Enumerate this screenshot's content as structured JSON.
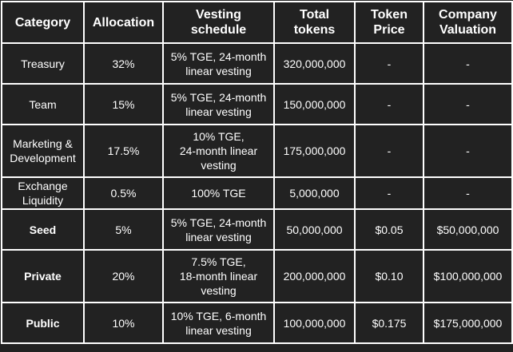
{
  "table": {
    "headers": [
      "Category",
      "Allocation",
      "Vesting\nschedule",
      "Total\ntokens",
      "Token\nPrice",
      "Company\nValuation"
    ],
    "rows": [
      {
        "category": "Treasury",
        "allocation": "32%",
        "vesting": "5% TGE, 24-month\nlinear vesting",
        "total": "320,000,000",
        "price": "-",
        "valuation": "-"
      },
      {
        "category": "Team",
        "allocation": "15%",
        "vesting": "5% TGE, 24-month\nlinear vesting",
        "total": "150,000,000",
        "price": "-",
        "valuation": "-"
      },
      {
        "category": "Marketing &\nDevelopment",
        "allocation": "17.5%",
        "vesting": "10% TGE,\n24-month linear\nvesting",
        "total": "175,000,000",
        "price": "-",
        "valuation": "-"
      },
      {
        "category": "Exchange\nLiquidity",
        "allocation": "0.5%",
        "vesting": "100% TGE",
        "total": "5,000,000",
        "price": "-",
        "valuation": "-"
      },
      {
        "category": "Seed",
        "allocation": "5%",
        "vesting": "5% TGE, 24-month\nlinear vesting",
        "total": "50,000,000",
        "price": "$0.05",
        "valuation": "$50,000,000"
      },
      {
        "category": "Private",
        "allocation": "20%",
        "vesting": "7.5% TGE,\n18-month linear\nvesting",
        "total": "200,000,000",
        "price": "$0.10",
        "valuation": "$100,000,000"
      },
      {
        "category": "Public",
        "allocation": "10%",
        "vesting": "10% TGE, 6-month\nlinear vesting",
        "total": "100,000,000",
        "price": "$0.175",
        "valuation": "$175,000,000"
      }
    ]
  }
}
